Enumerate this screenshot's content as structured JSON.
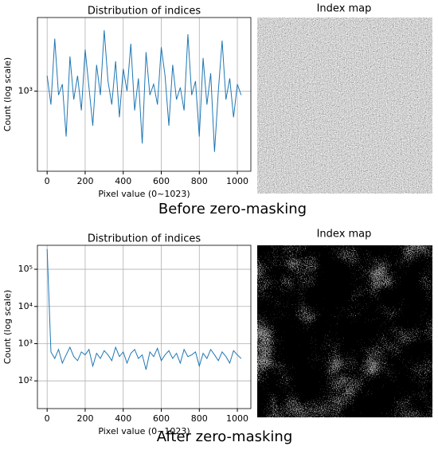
{
  "chart_data": [
    {
      "type": "line",
      "title": "Distribution of indices",
      "x_label": "Pixel value (0~1023)",
      "y_label": "Count (log scale)",
      "log_y": true,
      "grid": true,
      "color": "#1f77b4",
      "xlim": [
        -51,
        1071
      ],
      "xticks": [
        0,
        200,
        400,
        600,
        800,
        1000
      ],
      "ylim": [
        120,
        7000
      ],
      "yticks": [
        {
          "value": 1000,
          "label": "10³"
        }
      ],
      "x": [
        0,
        20,
        40,
        60,
        80,
        100,
        120,
        140,
        160,
        180,
        200,
        220,
        240,
        260,
        280,
        300,
        320,
        340,
        360,
        380,
        400,
        420,
        440,
        460,
        480,
        500,
        520,
        540,
        560,
        580,
        600,
        620,
        640,
        660,
        680,
        700,
        720,
        740,
        760,
        780,
        800,
        820,
        840,
        860,
        880,
        900,
        920,
        940,
        960,
        980,
        1000,
        1020
      ],
      "values": [
        1500,
        700,
        4000,
        900,
        1200,
        300,
        2500,
        800,
        1500,
        600,
        3000,
        1100,
        400,
        2000,
        900,
        5000,
        1300,
        700,
        2200,
        500,
        1800,
        1000,
        3500,
        600,
        1400,
        250,
        2800,
        900,
        1200,
        700,
        3200,
        1500,
        400,
        2000,
        800,
        1100,
        600,
        4500,
        900,
        1300,
        300,
        2400,
        700,
        1600,
        200,
        1000,
        3800,
        800,
        1400,
        500,
        1200,
        900
      ]
    },
    {
      "type": "line",
      "title": "Distribution of indices",
      "x_label": "Pixel value (0~1023)",
      "y_label": "Count (log scale)",
      "log_y": true,
      "grid": true,
      "color": "#1f77b4",
      "xlim": [
        -51,
        1071
      ],
      "xticks": [
        0,
        200,
        400,
        600,
        800,
        1000
      ],
      "ylim": [
        18,
        440000
      ],
      "yticks": [
        {
          "value": 100,
          "label": "10²"
        },
        {
          "value": 1000,
          "label": "10³"
        },
        {
          "value": 10000,
          "label": "10⁴"
        },
        {
          "value": 100000,
          "label": "10⁵"
        }
      ],
      "x": [
        0,
        20,
        40,
        60,
        80,
        100,
        120,
        140,
        160,
        180,
        200,
        220,
        240,
        260,
        280,
        300,
        320,
        340,
        360,
        380,
        400,
        420,
        440,
        460,
        480,
        500,
        520,
        540,
        560,
        580,
        600,
        620,
        640,
        660,
        680,
        700,
        720,
        740,
        760,
        780,
        800,
        820,
        840,
        860,
        880,
        900,
        920,
        940,
        960,
        980,
        1000,
        1020
      ],
      "values": [
        350000,
        600,
        400,
        700,
        300,
        500,
        800,
        450,
        350,
        600,
        500,
        700,
        250,
        550,
        400,
        650,
        500,
        350,
        800,
        450,
        600,
        300,
        550,
        700,
        400,
        500,
        200,
        600,
        450,
        750,
        350,
        500,
        650,
        400,
        550,
        300,
        700,
        450,
        500,
        600,
        250,
        550,
        400,
        700,
        500,
        350,
        600,
        450,
        300,
        650,
        500,
        400
      ]
    }
  ],
  "figures": [
    {
      "image_title": "Index map",
      "caption": "Before zero-masking"
    },
    {
      "image_title": "Index map",
      "caption": "After zero-masking"
    }
  ]
}
